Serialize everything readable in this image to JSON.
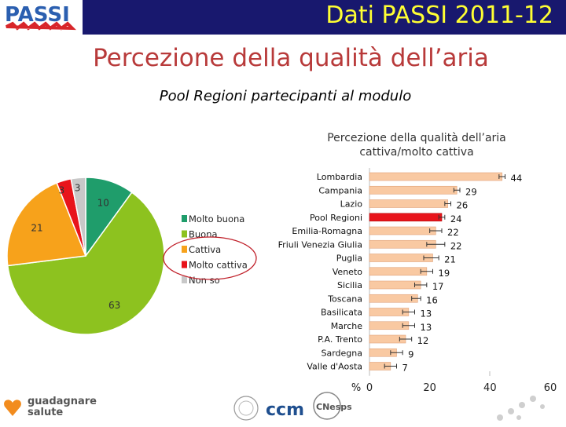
{
  "header": {
    "title": "Dati PASSI 2011-12",
    "logo_text": "PASSI"
  },
  "page": {
    "title": "Percezione della qualità dell’aria",
    "subtitle": "Pool Regioni partecipanti al modulo"
  },
  "colors": {
    "header_bg": "#18186e",
    "header_text": "#ffff33",
    "title": "#b83a3a",
    "bar": "#f9c9a2",
    "bar_highlight": "#e8141b"
  },
  "footer": {
    "logo1_line1": "guadagnare",
    "logo1_line2": "salute",
    "logo2_text": "ccm",
    "logo3_text": "CNesps"
  },
  "chart_data": [
    {
      "type": "pie",
      "labels": [
        "Molto buona",
        "Buona",
        "Cattiva",
        "Molto cattiva",
        "Non so"
      ],
      "values": [
        10,
        63,
        21,
        3,
        3
      ],
      "colors": [
        "#1f9d6b",
        "#8dc21f",
        "#f7a21b",
        "#e8141b",
        "#c8c8c8"
      ],
      "legend_position": "right",
      "highlighted_legend": [
        "Cattiva",
        "Molto cattiva"
      ]
    },
    {
      "type": "bar",
      "orientation": "horizontal",
      "title": "Percezione della qualità dell’aria cattiva/molto cattiva",
      "categories": [
        "Lombardia",
        "Campania",
        "Lazio",
        "Pool Regioni",
        "Emilia-Romagna",
        "Friuli Venezia Giulia",
        "Puglia",
        "Veneto",
        "Sicilia",
        "Toscana",
        "Basilicata",
        "Marche",
        "P.A. Trento",
        "Sardegna",
        "Valle d'Aosta"
      ],
      "values": [
        44,
        29,
        26,
        24,
        22,
        22,
        21,
        19,
        17,
        16,
        13,
        13,
        12,
        9,
        7
      ],
      "error_low": [
        43,
        28,
        25,
        23,
        20,
        19,
        18,
        17,
        15,
        14,
        11,
        11,
        10,
        7,
        5
      ],
      "error_high": [
        45,
        30,
        27,
        25,
        24,
        25,
        23,
        21,
        19,
        17,
        15,
        15,
        14,
        11,
        9
      ],
      "highlight": "Pool Regioni",
      "xlabel": "%",
      "xlim": [
        0,
        60
      ],
      "xticks": [
        0,
        20,
        40,
        60
      ]
    }
  ]
}
